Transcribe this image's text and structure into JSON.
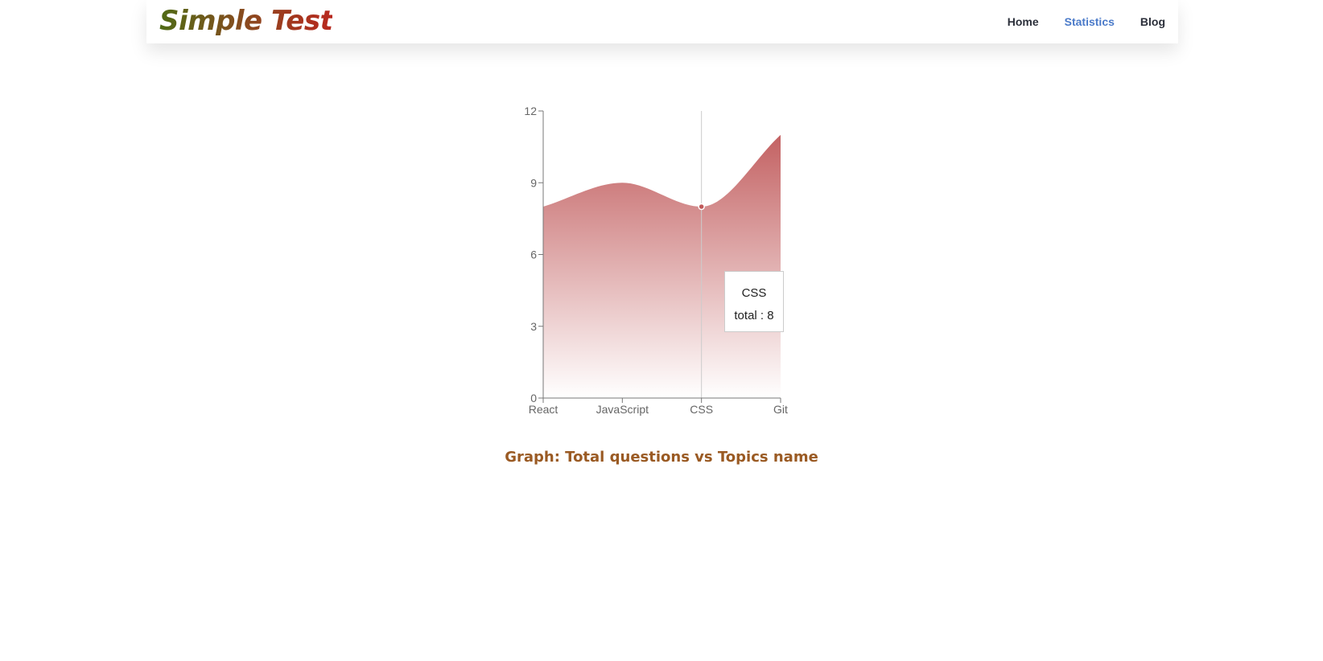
{
  "header": {
    "brand": "Simple Test",
    "nav": [
      {
        "label": "Home",
        "active": false
      },
      {
        "label": "Statistics",
        "active": true
      },
      {
        "label": "Blog",
        "active": false
      }
    ]
  },
  "chart_data": {
    "type": "area",
    "categories": [
      "React",
      "JavaScript",
      "CSS",
      "Git"
    ],
    "values": [
      8,
      9,
      8,
      11
    ],
    "yticks": [
      0,
      3,
      6,
      9,
      12
    ],
    "ylim": [
      0,
      12
    ],
    "fill_color": "#c0595a",
    "tooltip": {
      "category": "CSS",
      "text": "total : 8"
    }
  },
  "caption": "Graph: Total questions vs Topics name"
}
